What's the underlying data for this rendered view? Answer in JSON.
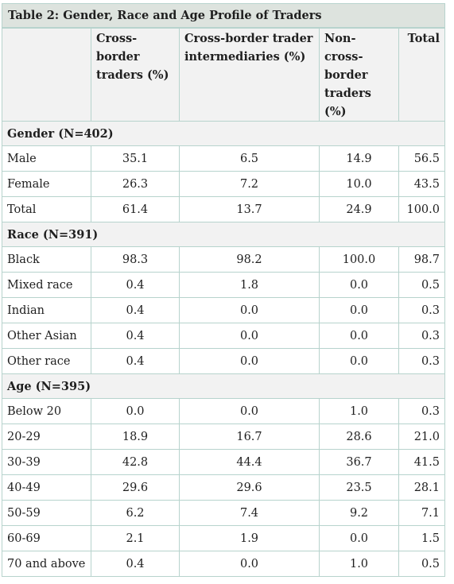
{
  "table": {
    "caption": "Table 2: Gender, Race and Age Profile of Traders",
    "headers": [
      "",
      "Cross-border traders (%)",
      "Cross-border trader intermediaries (%)",
      "Non-cross-border traders (%)",
      "Total"
    ],
    "header_lines": [
      [],
      [
        "Cross-",
        "border",
        "traders (%)"
      ],
      [
        "Cross-border  trader",
        "intermediaries (%)"
      ],
      [
        "Non-cross-",
        "border",
        "traders",
        "(%)"
      ],
      [
        "Total"
      ]
    ],
    "sections": [
      {
        "title": "Gender (N=402)",
        "rows": [
          [
            "Male",
            "35.1",
            "6.5",
            "14.9",
            "56.5"
          ],
          [
            "Female",
            "26.3",
            "7.2",
            "10.0",
            "43.5"
          ],
          [
            "Total",
            "61.4",
            "13.7",
            "24.9",
            "100.0"
          ]
        ]
      },
      {
        "title": "Race (N=391)",
        "rows": [
          [
            "Black",
            "98.3",
            "98.2",
            "100.0",
            "98.7"
          ],
          [
            "Mixed race",
            "0.4",
            "1.8",
            "0.0",
            "0.5"
          ],
          [
            "Indian",
            "0.4",
            "0.0",
            "0.0",
            "0.3"
          ],
          [
            "Other Asian",
            "0.4",
            "0.0",
            "0.0",
            "0.3"
          ],
          [
            "Other race",
            "0.4",
            "0.0",
            "0.0",
            "0.3"
          ]
        ]
      },
      {
        "title": "Age (N=395)",
        "rows": [
          [
            "Below 20",
            "0.0",
            "0.0",
            "1.0",
            "0.3"
          ],
          [
            "20-29",
            "18.9",
            "16.7",
            "28.6",
            "21.0"
          ],
          [
            "30-39",
            "42.8",
            "44.4",
            "36.7",
            "41.5"
          ],
          [
            "40-49",
            "29.6",
            "29.6",
            "23.5",
            "28.1"
          ],
          [
            "50-59",
            "6.2",
            "7.4",
            "9.2",
            "7.1"
          ],
          [
            "60-69",
            "2.1",
            "1.9",
            "0.0",
            "1.5"
          ],
          [
            "70 and above",
            "0.4",
            "0.0",
            "1.0",
            "0.5"
          ]
        ]
      }
    ]
  },
  "colors": {
    "caption_bg": "#dde3de",
    "header_bg": "#f2f2f2",
    "border": "#b7d3cd"
  }
}
